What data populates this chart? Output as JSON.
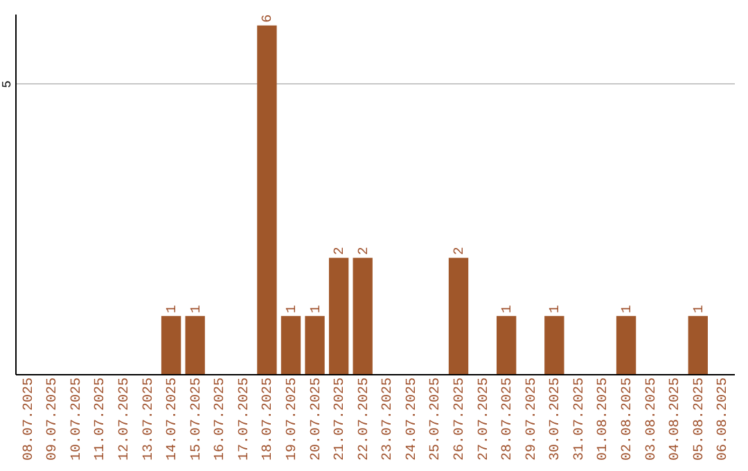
{
  "chart_data": {
    "type": "bar",
    "categories": [
      "08.07.2025",
      "09.07.2025",
      "10.07.2025",
      "11.07.2025",
      "12.07.2025",
      "13.07.2025",
      "14.07.2025",
      "15.07.2025",
      "16.07.2025",
      "17.07.2025",
      "18.07.2025",
      "19.07.2025",
      "20.07.2025",
      "21.07.2025",
      "22.07.2025",
      "23.07.2025",
      "24.07.2025",
      "25.07.2025",
      "26.07.2025",
      "27.07.2025",
      "28.07.2025",
      "29.07.2025",
      "30.07.2025",
      "31.07.2025",
      "01.08.2025",
      "02.08.2025",
      "03.08.2025",
      "04.08.2025",
      "05.08.2025",
      "06.08.2025"
    ],
    "values": [
      null,
      null,
      null,
      null,
      null,
      null,
      1,
      1,
      null,
      null,
      6,
      1,
      1,
      2,
      2,
      null,
      null,
      null,
      2,
      null,
      1,
      null,
      1,
      null,
      null,
      1,
      null,
      null,
      1,
      null
    ],
    "color": "#a0572a",
    "ylim": [
      0,
      6.2
    ],
    "yticks": [
      5
    ],
    "grid": "y",
    "data_labels": true
  }
}
